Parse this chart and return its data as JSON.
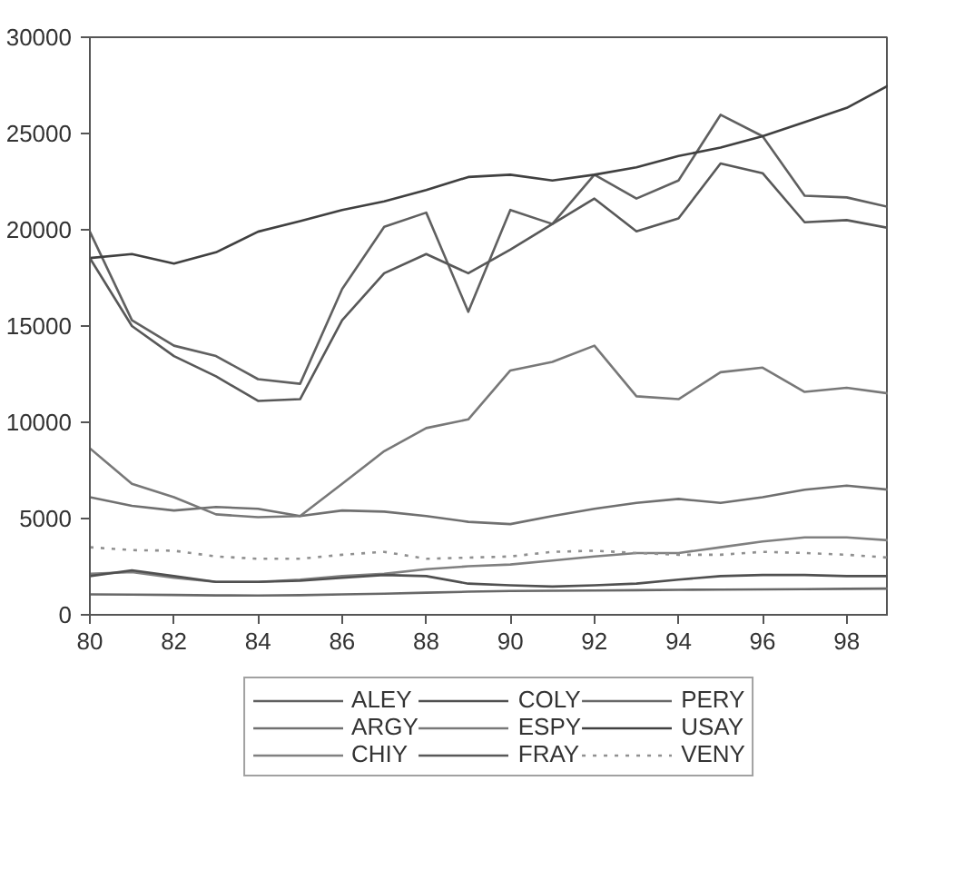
{
  "chart_data": {
    "type": "line",
    "x": [
      80,
      81,
      82,
      83,
      84,
      85,
      86,
      87,
      88,
      89,
      90,
      91,
      92,
      93,
      94,
      95,
      96,
      97,
      98,
      99
    ],
    "xlim": [
      80,
      99
    ],
    "xticks": [
      80,
      82,
      84,
      86,
      88,
      90,
      92,
      94,
      96,
      98
    ],
    "ylim": [
      0,
      30000
    ],
    "yticks": [
      0,
      5000,
      10000,
      15000,
      20000,
      25000,
      30000
    ],
    "grid": false,
    "legend": "bottom",
    "line_style": "solid",
    "series": [
      {
        "name": "ALEY",
        "color": "#606060",
        "values": [
          19900,
          15300,
          13980,
          13440,
          12240,
          12000,
          16920,
          20150,
          20890,
          15740,
          21030,
          20300,
          22860,
          21620,
          22560,
          25970,
          24860,
          21770,
          21680,
          21180
        ]
      },
      {
        "name": "ARGY",
        "color": "#707070",
        "values": [
          6110,
          5660,
          5420,
          5600,
          5510,
          5130,
          5420,
          5360,
          5130,
          4830,
          4710,
          5130,
          5510,
          5810,
          6020,
          5810,
          6110,
          6500,
          6710,
          6500
        ]
      },
      {
        "name": "CHIY",
        "color": "#808080",
        "values": [
          2130,
          2220,
          1920,
          1710,
          1710,
          1830,
          2010,
          2130,
          2370,
          2520,
          2610,
          2820,
          3030,
          3210,
          3210,
          3510,
          3810,
          4020,
          4020,
          3870
        ]
      },
      {
        "name": "COLY",
        "color": "#505050",
        "values": [
          2010,
          2310,
          2010,
          1710,
          1710,
          1770,
          1920,
          2070,
          2010,
          1620,
          1530,
          1470,
          1530,
          1620,
          1830,
          2010,
          2070,
          2070,
          2010,
          2010
        ]
      },
      {
        "name": "ESPY",
        "color": "#787878",
        "values": [
          8650,
          6800,
          6110,
          5220,
          5070,
          5130,
          6800,
          8500,
          9700,
          10150,
          12690,
          13140,
          13980,
          11350,
          11200,
          12600,
          12840,
          11580,
          11790,
          11500
        ]
      },
      {
        "name": "FRAY",
        "color": "#585858",
        "values": [
          18530,
          15000,
          13440,
          12390,
          11110,
          11200,
          15300,
          17740,
          18740,
          17740,
          18970,
          20300,
          21620,
          19920,
          20590,
          23440,
          22940,
          20390,
          20500,
          20090
        ]
      },
      {
        "name": "PERY",
        "color": "#686868",
        "values": [
          1060,
          1050,
          1030,
          1010,
          1000,
          1020,
          1060,
          1100,
          1150,
          1200,
          1240,
          1250,
          1260,
          1280,
          1300,
          1310,
          1320,
          1330,
          1350,
          1360
        ]
      },
      {
        "name": "USAY",
        "color": "#404040",
        "values": [
          18530,
          18740,
          18240,
          18830,
          19900,
          20450,
          21030,
          21470,
          22060,
          22740,
          22860,
          22560,
          22860,
          23240,
          23830,
          24270,
          24860,
          25590,
          26330,
          27500
        ]
      },
      {
        "name": "VENY",
        "color": "#909090",
        "line_style": "dotted",
        "values": [
          3510,
          3360,
          3330,
          3030,
          2910,
          2910,
          3120,
          3270,
          2910,
          2970,
          3030,
          3270,
          3330,
          3210,
          3120,
          3120,
          3270,
          3210,
          3120,
          2970
        ]
      }
    ]
  }
}
